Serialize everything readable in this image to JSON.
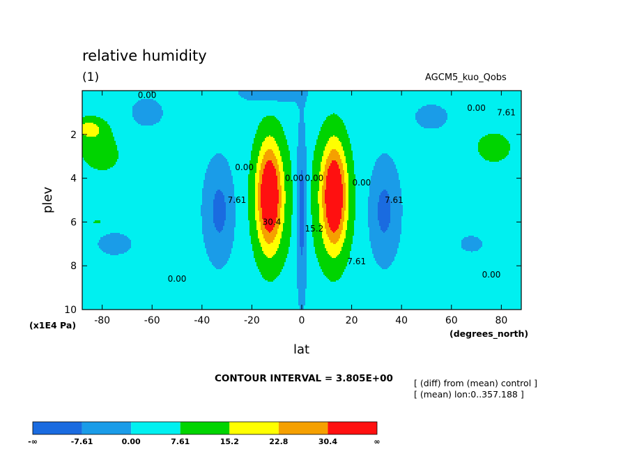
{
  "chart_data": {
    "type": "heatmap",
    "title": "relative humidity",
    "subtitle": "(1)",
    "experiment": "AGCM5_kuo_Qobs",
    "xlabel": "lat",
    "xunit": "(degrees_north)",
    "ylabel": "plev",
    "yunit": "(x1E4 Pa)",
    "xlim": [
      -88,
      88
    ],
    "ylim": [
      10,
      0
    ],
    "xticks": [
      -80,
      -60,
      -40,
      -20,
      0,
      20,
      40,
      60,
      80
    ],
    "yticks": [
      2,
      4,
      6,
      8,
      10
    ],
    "contour_interval_text": "CONTOUR INTERVAL = 3.805E+00",
    "notes": [
      "[ (diff) from (mean) control ]",
      "[ (mean) lon:0..357.188 ]"
    ],
    "colorbar": {
      "labels": [
        "-∞",
        "-7.61",
        "0.00",
        "7.61",
        "15.2",
        "22.8",
        "30.4",
        "∞"
      ],
      "colors": [
        "#1a6be0",
        "#1a9ce8",
        "#00f0f0",
        "#00d400",
        "#ffff00",
        "#f5a000",
        "#ff1010"
      ],
      "levels": [
        -7.61,
        0,
        7.61,
        15.2,
        22.8,
        30.4
      ]
    },
    "contour_labels": [
      {
        "text": "0.00",
        "lat": -62,
        "plev": 0.2
      },
      {
        "text": "0.00",
        "lat": 70,
        "plev": 0.8
      },
      {
        "text": "7.61",
        "lat": 82,
        "plev": 1.0
      },
      {
        "text": "7.61",
        "lat": -26,
        "plev": 5.0
      },
      {
        "text": "30.4",
        "lat": -12,
        "plev": 6.0
      },
      {
        "text": "0.00",
        "lat": -23,
        "plev": 3.5
      },
      {
        "text": "0.00",
        "lat": -3,
        "plev": 4.0
      },
      {
        "text": "0.00",
        "lat": 5,
        "plev": 4.0
      },
      {
        "text": "15.2",
        "lat": 5,
        "plev": 6.3
      },
      {
        "text": "0.00",
        "lat": 24,
        "plev": 4.2
      },
      {
        "text": "7.61",
        "lat": 22,
        "plev": 7.8
      },
      {
        "text": "7.61",
        "lat": 37,
        "plev": 5.0
      },
      {
        "text": "0.00",
        "lat": -50,
        "plev": 8.6
      },
      {
        "text": "0.00",
        "lat": 76,
        "plev": 8.4
      }
    ]
  }
}
